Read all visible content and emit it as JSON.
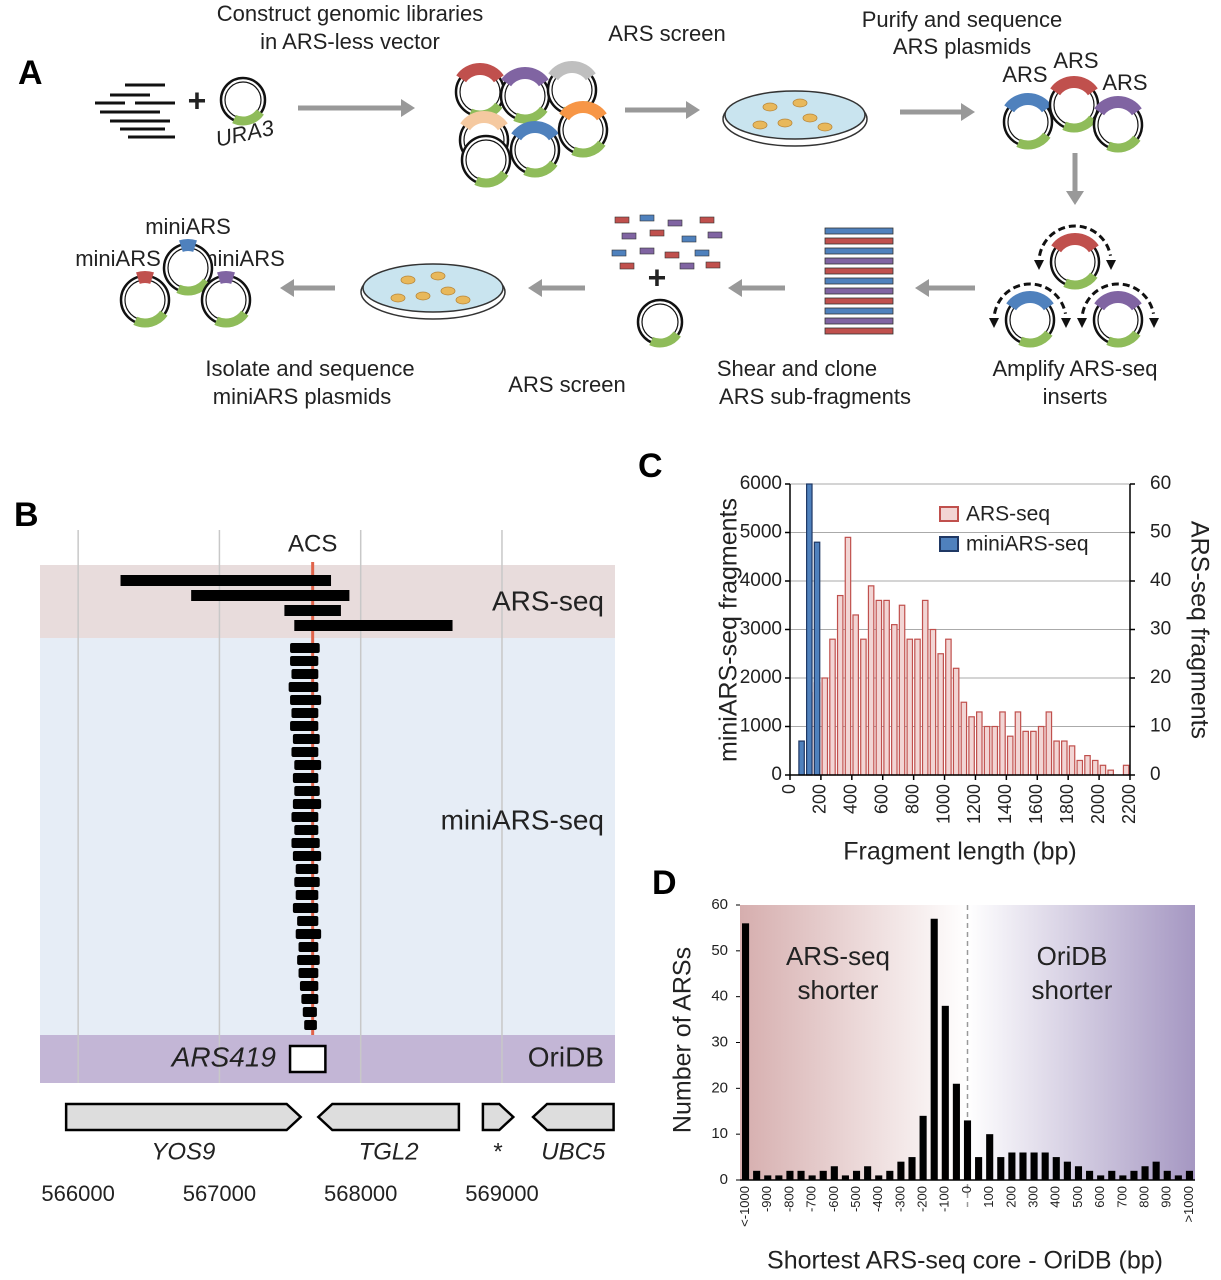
{
  "panels": [
    "A",
    "B",
    "C",
    "D"
  ],
  "diagram": {
    "construct": [
      "Construct genomic libraries",
      "in ARS-less vector"
    ],
    "marker": "URA3",
    "plus": [
      "+",
      "+"
    ],
    "screen1": "ARS screen",
    "purify": [
      "Purify and sequence",
      "ARS plasmids"
    ],
    "ars_labels": [
      "ARS",
      "ARS",
      "ARS"
    ],
    "amplify": [
      "Amplify ARS-seq",
      "inserts"
    ],
    "shear": [
      "Shear and clone",
      "ARS sub-fragments"
    ],
    "screen2": "ARS screen",
    "isolate": [
      "Isolate and sequence",
      "miniARS plasmids"
    ],
    "miniars_labels": [
      "miniARS",
      "miniARS",
      "miniARS"
    ]
  },
  "chart_data": [
    {
      "type": "track",
      "xlim": [
        565730,
        569800
      ],
      "xticks": [
        566000,
        567000,
        568000,
        569000
      ],
      "grid": true,
      "marker": {
        "label": "ACS",
        "x": 567660,
        "color": "#e0634a"
      },
      "series": [
        {
          "name": "ARS-seq",
          "color": "#e8dcdc",
          "ranges": [
            [
              566300,
              567790
            ],
            [
              566800,
              567920
            ],
            [
              567460,
              567860
            ],
            [
              567530,
              568650
            ]
          ]
        },
        {
          "name": "miniARS-seq",
          "color": "#e6edf6",
          "ranges": [
            [
              567500,
              567710
            ],
            [
              567500,
              567700
            ],
            [
              567510,
              567700
            ],
            [
              567490,
              567700
            ],
            [
              567500,
              567720
            ],
            [
              567510,
              567700
            ],
            [
              567500,
              567700
            ],
            [
              567520,
              567710
            ],
            [
              567510,
              567700
            ],
            [
              567530,
              567720
            ],
            [
              567520,
              567700
            ],
            [
              567530,
              567710
            ],
            [
              567520,
              567720
            ],
            [
              567510,
              567700
            ],
            [
              567530,
              567700
            ],
            [
              567510,
              567710
            ],
            [
              567520,
              567720
            ],
            [
              567540,
              567700
            ],
            [
              567530,
              567710
            ],
            [
              567540,
              567700
            ],
            [
              567520,
              567700
            ],
            [
              567550,
              567700
            ],
            [
              567540,
              567720
            ],
            [
              567560,
              567700
            ],
            [
              567550,
              567710
            ],
            [
              567560,
              567700
            ],
            [
              567570,
              567700
            ],
            [
              567580,
              567700
            ],
            [
              567590,
              567690
            ],
            [
              567600,
              567690
            ]
          ]
        },
        {
          "name": "OriDB",
          "color": "#c3b6d6",
          "label": "ARS419",
          "ranges": [
            [
              567500,
              567750
            ]
          ]
        }
      ],
      "genes": [
        {
          "name": "YOS9",
          "start": 565915,
          "end": 567575,
          "strand": "+"
        },
        {
          "name": "TGL2",
          "start": 567700,
          "end": 568695,
          "strand": "-"
        },
        {
          "name": "*",
          "start": 568865,
          "end": 569080,
          "strand": "+"
        },
        {
          "name": "UBC5",
          "start": 569220,
          "end": 569790,
          "strand": "-"
        }
      ]
    },
    {
      "type": "histogram",
      "xlabel": "Fragment length (bp)",
      "ylabel": "miniARS-seq fragments",
      "y2label": "ARS-seq fragments",
      "xlim": [
        0,
        2200
      ],
      "xticks": [
        0,
        200,
        400,
        600,
        800,
        1000,
        1200,
        1400,
        1600,
        1800,
        2000,
        2200
      ],
      "ylim": [
        0,
        6000
      ],
      "yticks": [
        0,
        1000,
        2000,
        3000,
        4000,
        5000,
        6000
      ],
      "y2lim": [
        0,
        60
      ],
      "y2ticks": [
        0,
        10,
        20,
        30,
        40,
        50,
        60
      ],
      "grid": true,
      "legend": "upper right",
      "series": [
        {
          "name": "ARS-seq",
          "color": "#c0504d",
          "fill": "#f2d5d4",
          "axis": "y2",
          "bins": [
            100,
            150,
            200,
            250,
            300,
            350,
            400,
            450,
            500,
            550,
            600,
            650,
            700,
            750,
            800,
            850,
            900,
            950,
            1000,
            1050,
            1100,
            1150,
            1200,
            1250,
            1300,
            1350,
            1400,
            1450,
            1500,
            1550,
            1600,
            1650,
            1700,
            1750,
            1800,
            1850,
            1900,
            1950,
            2000,
            2050,
            2100,
            2150,
            2200
          ],
          "values": [
            17,
            19,
            20,
            28,
            37,
            49,
            33,
            28,
            39,
            36,
            36,
            31,
            35,
            28,
            28,
            36,
            30,
            25,
            28,
            22,
            15,
            12,
            13,
            10,
            10,
            13,
            8,
            13,
            9,
            9,
            10,
            13,
            7,
            7,
            6,
            3,
            4,
            3,
            2,
            1,
            0,
            2
          ]
        },
        {
          "name": "miniARS-seq",
          "color": "#1f3864",
          "fill": "#4f81bd",
          "bins": [
            50,
            100,
            150,
            200
          ],
          "values": [
            700,
            6000,
            4800
          ]
        }
      ]
    },
    {
      "type": "bar",
      "xlabel": "Shortest ARS-seq core - OriDB (bp)",
      "ylabel": "Number of ARSs",
      "categories": [
        "<-1000",
        null,
        "-900",
        null,
        "-800",
        null,
        "-700",
        null,
        "-600",
        null,
        "-500",
        null,
        "-400",
        null,
        "-300",
        null,
        "-200",
        null,
        "-100",
        null,
        "0",
        null,
        "100",
        null,
        "200",
        null,
        "300",
        null,
        "400",
        null,
        "500",
        null,
        "600",
        null,
        "700",
        null,
        "800",
        null,
        "900",
        null,
        ">1000"
      ],
      "values": [
        56,
        2,
        1,
        1,
        2,
        2,
        1,
        2,
        3,
        1,
        2,
        3,
        1,
        2,
        4,
        5,
        14,
        57,
        38,
        21,
        13,
        5,
        10,
        5,
        6,
        6,
        6,
        6,
        5,
        4,
        3,
        2,
        1,
        2,
        1,
        2,
        3,
        4,
        2,
        1,
        2
      ],
      "color": "#000000",
      "background_colors": [
        "#d6aeae",
        "#ffffff",
        "#a597c2"
      ],
      "ylim": [
        0,
        60
      ],
      "yticks": [
        0,
        10,
        20,
        30,
        40,
        50,
        60
      ],
      "annotations": [
        [
          "ARS-seq",
          "shorter"
        ],
        [
          "OriDB",
          "shorter"
        ]
      ]
    }
  ]
}
